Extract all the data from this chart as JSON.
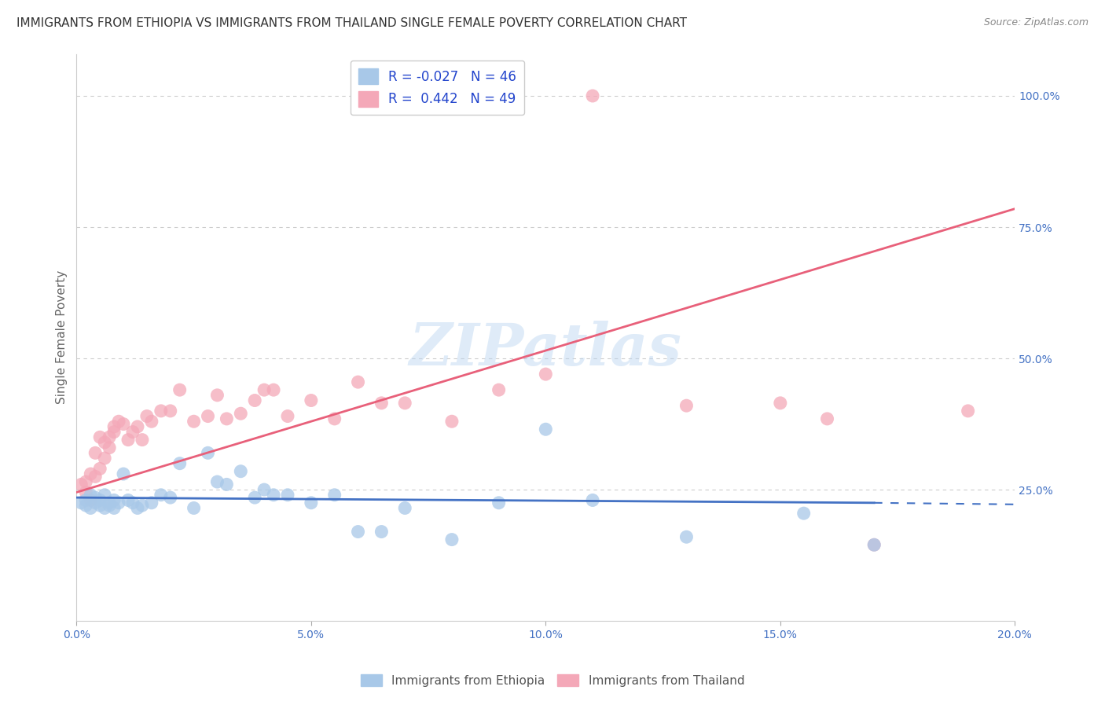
{
  "title": "IMMIGRANTS FROM ETHIOPIA VS IMMIGRANTS FROM THAILAND SINGLE FEMALE POVERTY CORRELATION CHART",
  "source": "Source: ZipAtlas.com",
  "ylabel": "Single Female Poverty",
  "watermark": "ZIPatlas",
  "ethiopia_color": "#a8c8e8",
  "thailand_color": "#f4a8b8",
  "ethiopia_line_color": "#4472c4",
  "thailand_line_color": "#e8607a",
  "legend_text_color": "#2244cc",
  "ethiopia_R": -0.027,
  "ethiopia_N": 46,
  "thailand_R": 0.442,
  "thailand_N": 49,
  "ethiopia_scatter_x": [
    0.001,
    0.002,
    0.002,
    0.003,
    0.003,
    0.004,
    0.004,
    0.005,
    0.005,
    0.006,
    0.006,
    0.007,
    0.007,
    0.008,
    0.008,
    0.009,
    0.01,
    0.011,
    0.012,
    0.013,
    0.014,
    0.016,
    0.018,
    0.02,
    0.022,
    0.025,
    0.028,
    0.03,
    0.032,
    0.035,
    0.038,
    0.04,
    0.042,
    0.045,
    0.05,
    0.055,
    0.06,
    0.065,
    0.07,
    0.08,
    0.09,
    0.1,
    0.11,
    0.13,
    0.155,
    0.17
  ],
  "ethiopia_scatter_y": [
    0.225,
    0.22,
    0.23,
    0.24,
    0.215,
    0.225,
    0.235,
    0.22,
    0.23,
    0.24,
    0.215,
    0.225,
    0.22,
    0.23,
    0.215,
    0.225,
    0.28,
    0.23,
    0.225,
    0.215,
    0.22,
    0.225,
    0.24,
    0.235,
    0.3,
    0.215,
    0.32,
    0.265,
    0.26,
    0.285,
    0.235,
    0.25,
    0.24,
    0.24,
    0.225,
    0.24,
    0.17,
    0.17,
    0.215,
    0.155,
    0.225,
    0.365,
    0.23,
    0.16,
    0.205,
    0.145
  ],
  "thailand_scatter_x": [
    0.001,
    0.002,
    0.002,
    0.003,
    0.003,
    0.004,
    0.004,
    0.005,
    0.005,
    0.006,
    0.006,
    0.007,
    0.007,
    0.008,
    0.008,
    0.009,
    0.01,
    0.011,
    0.012,
    0.013,
    0.014,
    0.015,
    0.016,
    0.018,
    0.02,
    0.022,
    0.025,
    0.028,
    0.03,
    0.032,
    0.035,
    0.038,
    0.04,
    0.042,
    0.045,
    0.05,
    0.055,
    0.06,
    0.065,
    0.07,
    0.08,
    0.09,
    0.1,
    0.11,
    0.13,
    0.15,
    0.16,
    0.17,
    0.19
  ],
  "thailand_scatter_y": [
    0.26,
    0.245,
    0.265,
    0.23,
    0.28,
    0.275,
    0.32,
    0.35,
    0.29,
    0.31,
    0.34,
    0.33,
    0.35,
    0.36,
    0.37,
    0.38,
    0.375,
    0.345,
    0.36,
    0.37,
    0.345,
    0.39,
    0.38,
    0.4,
    0.4,
    0.44,
    0.38,
    0.39,
    0.43,
    0.385,
    0.395,
    0.42,
    0.44,
    0.44,
    0.39,
    0.42,
    0.385,
    0.455,
    0.415,
    0.415,
    0.38,
    0.44,
    0.47,
    1.0,
    0.41,
    0.415,
    0.385,
    0.145,
    0.4
  ],
  "background_color": "#ffffff",
  "grid_color": "#cccccc",
  "title_color": "#333333",
  "axis_label_color": "#4472c4",
  "title_fontsize": 11,
  "source_fontsize": 9,
  "xlim": [
    0,
    0.2
  ],
  "ylim": [
    0,
    1.08
  ],
  "yticks": [
    0.25,
    0.5,
    0.75,
    1.0
  ],
  "ytick_labels": [
    "25.0%",
    "50.0%",
    "75.0%",
    "100.0%"
  ],
  "xticks": [
    0.0,
    0.05,
    0.1,
    0.15,
    0.2
  ],
  "xtick_labels": [
    "0.0%",
    "5.0%",
    "10.0%",
    "15.0%",
    "20.0%"
  ]
}
